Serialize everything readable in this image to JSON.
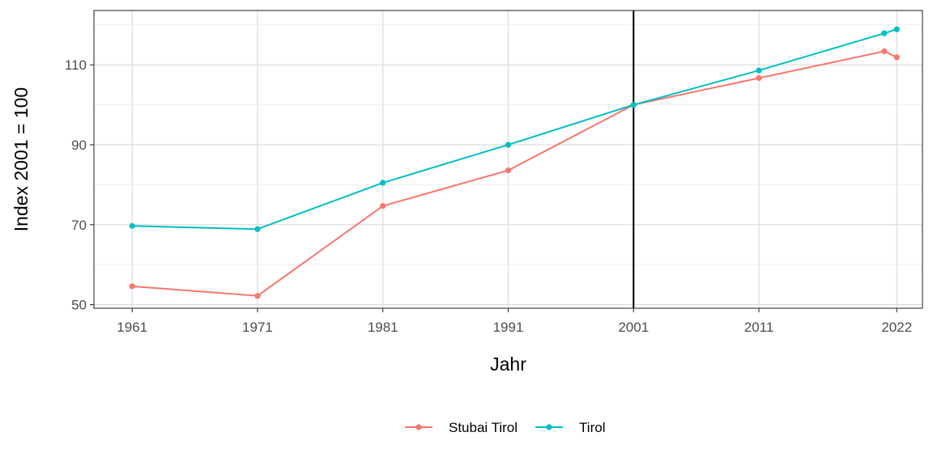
{
  "chart_data": {
    "type": "line",
    "xlabel": "Jahr",
    "ylabel": "Index 2001 = 100",
    "xlim": [
      1957.95,
      2024.05
    ],
    "ylim": [
      49.1,
      123.6
    ],
    "x_ticks": [
      1961,
      1971,
      1981,
      1991,
      2001,
      2011,
      2022
    ],
    "y_ticks": [
      50,
      70,
      90,
      110
    ],
    "y_minor_ticks": [
      60,
      80,
      100,
      120
    ],
    "reference_line_x": 2001,
    "grid": true,
    "legend_position": "bottom",
    "series": [
      {
        "name": "Stubai Tirol",
        "color": "#F8766D",
        "points": [
          {
            "x": 1961,
            "y": 54.6
          },
          {
            "x": 1971,
            "y": 52.2
          },
          {
            "x": 1981,
            "y": 74.7
          },
          {
            "x": 1991,
            "y": 83.6
          },
          {
            "x": 2001,
            "y": 100.0
          },
          {
            "x": 2011,
            "y": 106.7
          },
          {
            "x": 2021,
            "y": 113.4
          },
          {
            "x": 2022,
            "y": 111.9
          }
        ]
      },
      {
        "name": "Tirol",
        "color": "#00BFC4",
        "points": [
          {
            "x": 1961,
            "y": 69.7
          },
          {
            "x": 1971,
            "y": 68.9
          },
          {
            "x": 1981,
            "y": 80.5
          },
          {
            "x": 1991,
            "y": 90.0
          },
          {
            "x": 2001,
            "y": 100.0
          },
          {
            "x": 2011,
            "y": 108.6
          },
          {
            "x": 2021,
            "y": 117.9
          },
          {
            "x": 2022,
            "y": 118.9
          }
        ]
      }
    ]
  }
}
